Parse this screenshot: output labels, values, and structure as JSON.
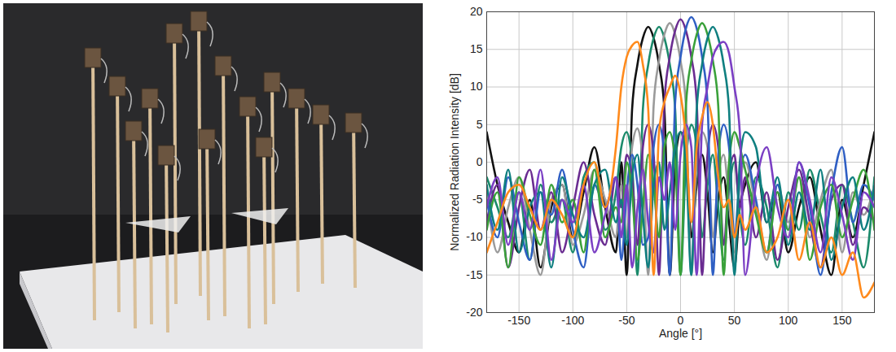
{
  "chart_data": {
    "type": "line",
    "x_label": "Angle [°]",
    "y_label": "Normalized Radiation Intensity [dB]",
    "xlim": [
      -180,
      180
    ],
    "xticks": [
      -150,
      -100,
      -50,
      0,
      50,
      100,
      150
    ],
    "ylim": [
      -20,
      20
    ],
    "yticks": [
      -20,
      -15,
      -10,
      -5,
      0,
      5,
      10,
      15,
      20
    ],
    "grid": true,
    "x": [
      -180,
      -170,
      -160,
      -150,
      -140,
      -130,
      -120,
      -110,
      -100,
      -90,
      -80,
      -70,
      -60,
      -55,
      -50,
      -45,
      -40,
      -35,
      -30,
      -25,
      -20,
      -15,
      -10,
      -5,
      0,
      5,
      10,
      15,
      20,
      25,
      30,
      35,
      40,
      45,
      50,
      55,
      60,
      70,
      80,
      90,
      100,
      110,
      120,
      130,
      140,
      150,
      160,
      170,
      180
    ],
    "series": [
      {
        "color": "#111111",
        "values": [
          4,
          -3,
          -8,
          -12,
          -5,
          -14,
          -6,
          -3,
          -10,
          -4,
          2,
          -6,
          -12,
          0,
          -15,
          7,
          13,
          16.5,
          18,
          16.5,
          13,
          7,
          -15,
          0,
          4,
          2,
          -10,
          -3,
          1,
          -4,
          -12,
          -5,
          -2,
          -8,
          -14,
          -6,
          -3,
          0,
          -8,
          -4,
          -12,
          -6,
          -2,
          -9,
          -15,
          -5,
          -10,
          -3,
          4
        ]
      },
      {
        "color": "#1b8a6b",
        "values": [
          -2,
          -6,
          -10,
          -4,
          -13,
          -3,
          -8,
          -5,
          -12,
          -2,
          0,
          -9,
          -4,
          2,
          4,
          0,
          -15,
          7,
          13,
          16.5,
          18,
          16.5,
          13,
          7,
          -15,
          0,
          5,
          2,
          -10,
          -3,
          1,
          -6,
          -13,
          -4,
          0,
          -7,
          -11,
          -2,
          -6,
          -14,
          -4,
          -9,
          -1,
          -7,
          -12,
          -3,
          -8,
          -14,
          -2
        ]
      },
      {
        "color": "#9a9a9a",
        "values": [
          -4,
          -12,
          -6,
          -2,
          -9,
          -15,
          -5,
          -3,
          -11,
          -7,
          -1,
          -5,
          -10,
          -3,
          -10,
          2,
          4.5,
          0,
          -15,
          7.5,
          13.5,
          17,
          18.5,
          17,
          13.5,
          7.5,
          -15,
          0,
          4,
          2,
          -10,
          -2,
          1,
          -5,
          -12,
          -3,
          0,
          -6,
          -13,
          -3,
          -8,
          -2,
          -10,
          -5,
          -1,
          -12,
          -4,
          -7,
          -3
        ]
      },
      {
        "color": "#6a2c91",
        "values": [
          -8,
          -3,
          -14,
          -6,
          -1,
          -9,
          -4,
          -12,
          -6,
          0,
          -7,
          -11,
          -2,
          -6,
          1,
          -2,
          -11,
          2,
          5,
          1,
          -15,
          8,
          14,
          17.5,
          19,
          17.5,
          14,
          8,
          -15,
          1,
          5,
          2,
          -11,
          -2,
          1,
          -6,
          -2,
          -10,
          -4,
          -13,
          -6,
          -1,
          -8,
          -14,
          -5,
          -3,
          -11,
          -6,
          -8
        ]
      },
      {
        "color": "#2f5fc4",
        "values": [
          -5,
          -10,
          -2,
          -8,
          -13,
          -4,
          -7,
          -1,
          -9,
          -14,
          -3,
          -6,
          -2,
          -13,
          -4,
          1,
          -3,
          -11,
          -10,
          2,
          5,
          1,
          -15,
          8,
          14,
          17.8,
          19.3,
          17.8,
          14,
          8,
          -15,
          1,
          5,
          2,
          -10,
          -2,
          1,
          -5,
          -12,
          -3,
          -9,
          0,
          -6,
          -15,
          -4,
          2,
          -8,
          -3,
          -5
        ]
      },
      {
        "color": "#3aa13a",
        "values": [
          -9,
          -4,
          -14,
          -2,
          -7,
          -11,
          -3,
          -8,
          -5,
          -12,
          -1,
          -10,
          -6,
          -8,
          0,
          -4,
          -13,
          -6,
          1,
          -3,
          -10,
          2,
          4,
          0,
          -15,
          7.5,
          13.5,
          17,
          18.5,
          17,
          13.5,
          7.5,
          -15,
          0,
          4,
          2,
          -1,
          -7,
          -12,
          -4,
          -9,
          -2,
          -13,
          -6,
          -3,
          -10,
          -5,
          -1,
          -9
        ]
      },
      {
        "color": "#0f7f80",
        "values": [
          -3,
          -9,
          -1,
          -12,
          -6,
          -4,
          -14,
          -2,
          -7,
          -10,
          -3,
          -1,
          -8,
          -5,
          -11,
          -2,
          1,
          -7,
          -14,
          -3,
          0,
          -9,
          -4,
          2,
          4,
          0,
          -15,
          7,
          13,
          16.5,
          18,
          16.5,
          13,
          7,
          -15,
          0,
          4,
          2,
          -8,
          -2,
          -11,
          -4,
          -9,
          -1,
          -13,
          -6,
          -2,
          -9,
          -3
        ]
      },
      {
        "color": "#7b3fc4",
        "values": [
          -6,
          -2,
          -11,
          -4,
          -9,
          -1,
          -13,
          -5,
          -8,
          -3,
          -12,
          -7,
          -2,
          -10,
          -3,
          -14,
          -6,
          -1,
          -8,
          -12,
          -2,
          -5,
          0,
          -9,
          1,
          5,
          2,
          -15,
          5,
          10,
          14,
          15.5,
          16,
          14.5,
          10,
          4,
          -15,
          -3,
          2,
          -6,
          -10,
          0,
          -5,
          -12,
          -2,
          -7,
          -13,
          -4,
          -6
        ]
      },
      {
        "color": "#ff8a1c",
        "values": [
          -12,
          -8,
          -4,
          -3,
          -6,
          -9,
          -5,
          -7,
          -10,
          -3,
          0,
          -6,
          2,
          10,
          14,
          15.5,
          16,
          13,
          7,
          -15,
          4,
          8,
          10,
          11.5,
          9,
          3,
          -8,
          2,
          6,
          8,
          5,
          -2,
          -6,
          -5,
          -10,
          -7,
          -9,
          -6,
          -12,
          -10,
          -5,
          -13,
          -8,
          -14,
          -10,
          -15,
          -12,
          -18,
          -16
        ]
      }
    ]
  }
}
